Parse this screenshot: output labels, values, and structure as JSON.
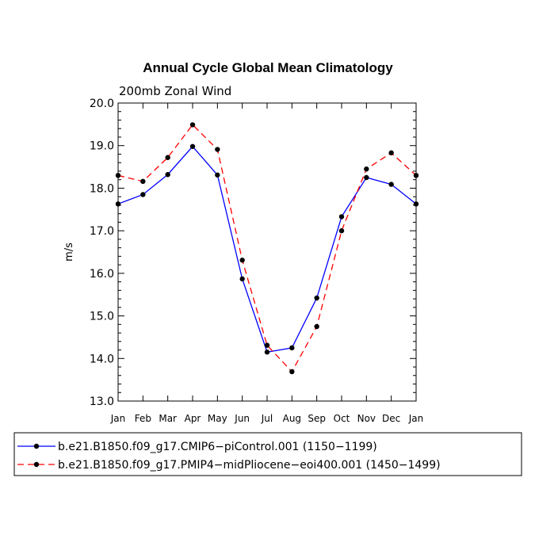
{
  "chart_data": {
    "type": "line",
    "title": "Annual Cycle Global Mean Climatology",
    "subtitle": "200mb Zonal Wind",
    "ylabel": "m/s",
    "xlabel": "",
    "ylim": [
      13.0,
      20.0
    ],
    "yticks": [
      "13.0",
      "14.0",
      "15.0",
      "16.0",
      "17.0",
      "18.0",
      "19.0",
      "20.0"
    ],
    "categories": [
      "Jan",
      "Feb",
      "Mar",
      "Apr",
      "May",
      "Jun",
      "Jul",
      "Aug",
      "Sep",
      "Oct",
      "Nov",
      "Dec",
      "Jan"
    ],
    "series": [
      {
        "name": "b.e21.B1850.f09_g17.CMIP6−piControl.001 (1150−1199)",
        "color": "#0000ff",
        "dash": "solid",
        "values": [
          17.63,
          17.85,
          18.32,
          18.98,
          18.31,
          15.87,
          14.15,
          14.25,
          15.42,
          17.33,
          18.25,
          18.09,
          17.63
        ]
      },
      {
        "name": "b.e21.B1850.f09_g17.PMIP4−midPliocene−eoi400.001 (1450−1499)",
        "color": "#ff0000",
        "dash": "dashed",
        "values": [
          18.3,
          18.16,
          18.72,
          19.49,
          18.91,
          16.31,
          14.31,
          13.69,
          14.75,
          17.0,
          18.45,
          18.83,
          18.3
        ]
      }
    ]
  }
}
